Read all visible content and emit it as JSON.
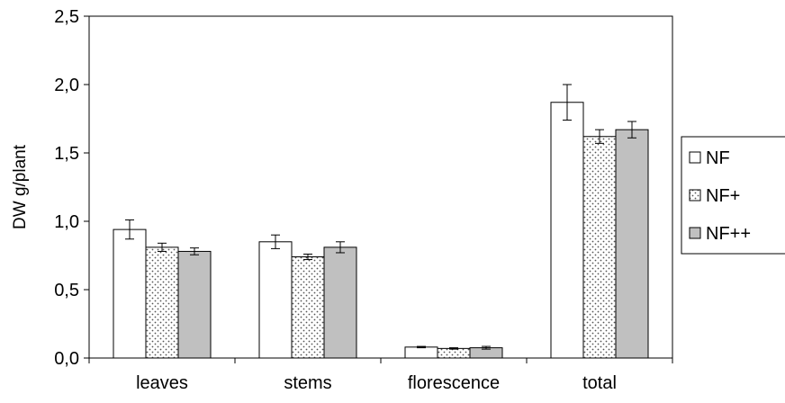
{
  "chart_data": {
    "type": "bar",
    "ylabel": "DW g/plant",
    "categories": [
      "leaves",
      "stems",
      "florescence",
      "total"
    ],
    "ylim": [
      0,
      2.5
    ],
    "yticks": [
      "0,0",
      "0,5",
      "1,0",
      "1,5",
      "2,0",
      "2,5"
    ],
    "grid": false,
    "legend_position": "right",
    "series": [
      {
        "name": "NF",
        "values": [
          0.94,
          0.85,
          0.08,
          1.87
        ],
        "errors": [
          0.07,
          0.05,
          0.005,
          0.13
        ],
        "fill": "white"
      },
      {
        "name": "NF+",
        "values": [
          0.81,
          0.74,
          0.07,
          1.62
        ],
        "errors": [
          0.03,
          0.02,
          0.005,
          0.05
        ],
        "fill": "dots"
      },
      {
        "name": "NF++",
        "values": [
          0.78,
          0.81,
          0.075,
          1.67
        ],
        "errors": [
          0.025,
          0.04,
          0.01,
          0.06
        ],
        "fill": "gray"
      }
    ],
    "colors": {
      "gray": "#c0c0c0",
      "dot": "#555555",
      "stroke": "#000000"
    }
  }
}
